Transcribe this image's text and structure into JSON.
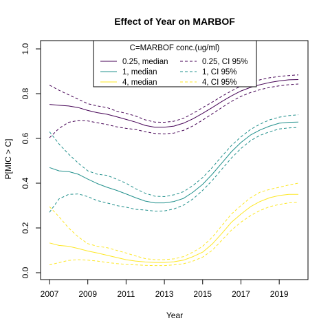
{
  "chart_data": {
    "type": "line",
    "title": "Effect of Year on MARBOF",
    "xlabel": "Year",
    "ylabel": "P[MIC > C]",
    "xlim": [
      2007,
      2020
    ],
    "ylim": [
      0,
      1
    ],
    "x_ticks": [
      2007,
      2009,
      2011,
      2013,
      2015,
      2017,
      2019
    ],
    "y_ticks": [
      0.0,
      0.2,
      0.4,
      0.6,
      0.8,
      1.0
    ],
    "y_tick_labels": [
      "0.0",
      "0.2",
      "0.4",
      "0.6",
      "0.8",
      "1.0"
    ],
    "grid": false,
    "legend": {
      "title": "C=MARBOF conc.(ug/ml)",
      "placement": "top",
      "entries": [
        {
          "label": "0.25, median",
          "color": "#440154",
          "style": "solid"
        },
        {
          "label": "0.25, CI 95%",
          "color": "#440154",
          "style": "dashed"
        },
        {
          "label": "1, median",
          "color": "#21908C",
          "style": "solid"
        },
        {
          "label": "1, CI 95%",
          "color": "#21908C",
          "style": "dashed"
        },
        {
          "label": "4, median",
          "color": "#FDE725",
          "style": "solid"
        },
        {
          "label": "4, CI 95%",
          "color": "#FDE725",
          "style": "dashed"
        }
      ]
    },
    "x": [
      2007,
      2007.5,
      2008,
      2008.5,
      2009,
      2009.5,
      2010,
      2010.5,
      2011,
      2011.5,
      2012,
      2012.5,
      2013,
      2013.5,
      2014,
      2014.5,
      2015,
      2015.5,
      2016,
      2016.5,
      2017,
      2017.5,
      2018,
      2018.5,
      2019,
      2019.5,
      2020
    ],
    "series": [
      {
        "name": "0.25, median",
        "color": "#440154",
        "style": "solid",
        "values": [
          0.752,
          0.748,
          0.745,
          0.738,
          0.725,
          0.715,
          0.708,
          0.697,
          0.685,
          0.673,
          0.658,
          0.65,
          0.65,
          0.655,
          0.668,
          0.688,
          0.712,
          0.738,
          0.765,
          0.79,
          0.812,
          0.828,
          0.84,
          0.85,
          0.857,
          0.862,
          0.863
        ]
      },
      {
        "name": "0.25, CI 95%",
        "color": "#440154",
        "style": "dashed",
        "values": [
          0.838,
          0.815,
          0.795,
          0.775,
          0.755,
          0.745,
          0.738,
          0.722,
          0.712,
          0.7,
          0.683,
          0.673,
          0.672,
          0.677,
          0.69,
          0.712,
          0.738,
          0.762,
          0.788,
          0.812,
          0.834,
          0.85,
          0.862,
          0.871,
          0.877,
          0.881,
          0.884
        ]
      },
      {
        "name": "0.25, CI 95%",
        "color": "#440154",
        "style": "dashed",
        "values": [
          0.603,
          0.645,
          0.672,
          0.68,
          0.678,
          0.67,
          0.662,
          0.652,
          0.645,
          0.64,
          0.63,
          0.622,
          0.62,
          0.624,
          0.636,
          0.656,
          0.682,
          0.71,
          0.738,
          0.765,
          0.788,
          0.805,
          0.818,
          0.828,
          0.835,
          0.84,
          0.843
        ]
      },
      {
        "name": "1, median",
        "color": "#21908C",
        "style": "solid",
        "values": [
          0.47,
          0.455,
          0.452,
          0.44,
          0.418,
          0.398,
          0.382,
          0.368,
          0.352,
          0.335,
          0.32,
          0.312,
          0.312,
          0.318,
          0.332,
          0.36,
          0.395,
          0.44,
          0.49,
          0.54,
          0.582,
          0.615,
          0.638,
          0.655,
          0.668,
          0.672,
          0.673
        ]
      },
      {
        "name": "1, CI 95%",
        "color": "#21908C",
        "style": "dashed",
        "values": [
          0.63,
          0.575,
          0.53,
          0.49,
          0.455,
          0.44,
          0.435,
          0.418,
          0.4,
          0.375,
          0.355,
          0.342,
          0.34,
          0.348,
          0.362,
          0.39,
          0.425,
          0.47,
          0.52,
          0.568,
          0.607,
          0.64,
          0.664,
          0.683,
          0.695,
          0.702,
          0.706
        ]
      },
      {
        "name": "1, CI 95%",
        "color": "#21908C",
        "style": "dashed",
        "values": [
          0.27,
          0.33,
          0.35,
          0.352,
          0.34,
          0.322,
          0.312,
          0.3,
          0.293,
          0.283,
          0.28,
          0.275,
          0.276,
          0.285,
          0.302,
          0.33,
          0.368,
          0.412,
          0.462,
          0.512,
          0.555,
          0.59,
          0.614,
          0.63,
          0.642,
          0.647,
          0.649
        ]
      },
      {
        "name": "4, median",
        "color": "#FDE725",
        "style": "solid",
        "values": [
          0.133,
          0.122,
          0.118,
          0.108,
          0.097,
          0.088,
          0.078,
          0.068,
          0.058,
          0.052,
          0.048,
          0.046,
          0.046,
          0.049,
          0.056,
          0.072,
          0.092,
          0.128,
          0.175,
          0.225,
          0.262,
          0.295,
          0.318,
          0.335,
          0.345,
          0.35,
          0.35
        ]
      },
      {
        "name": "4, CI 95%",
        "color": "#FDE725",
        "style": "dashed",
        "values": [
          0.295,
          0.25,
          0.2,
          0.16,
          0.13,
          0.118,
          0.112,
          0.1,
          0.088,
          0.075,
          0.063,
          0.058,
          0.058,
          0.062,
          0.072,
          0.092,
          0.118,
          0.158,
          0.21,
          0.262,
          0.3,
          0.335,
          0.36,
          0.372,
          0.382,
          0.392,
          0.4
        ]
      },
      {
        "name": "4, CI 95%",
        "color": "#FDE725",
        "style": "dashed",
        "values": [
          0.035,
          0.045,
          0.055,
          0.058,
          0.056,
          0.052,
          0.046,
          0.041,
          0.037,
          0.035,
          0.033,
          0.032,
          0.032,
          0.035,
          0.04,
          0.052,
          0.07,
          0.1,
          0.145,
          0.19,
          0.226,
          0.255,
          0.278,
          0.295,
          0.305,
          0.312,
          0.315
        ]
      }
    ]
  }
}
